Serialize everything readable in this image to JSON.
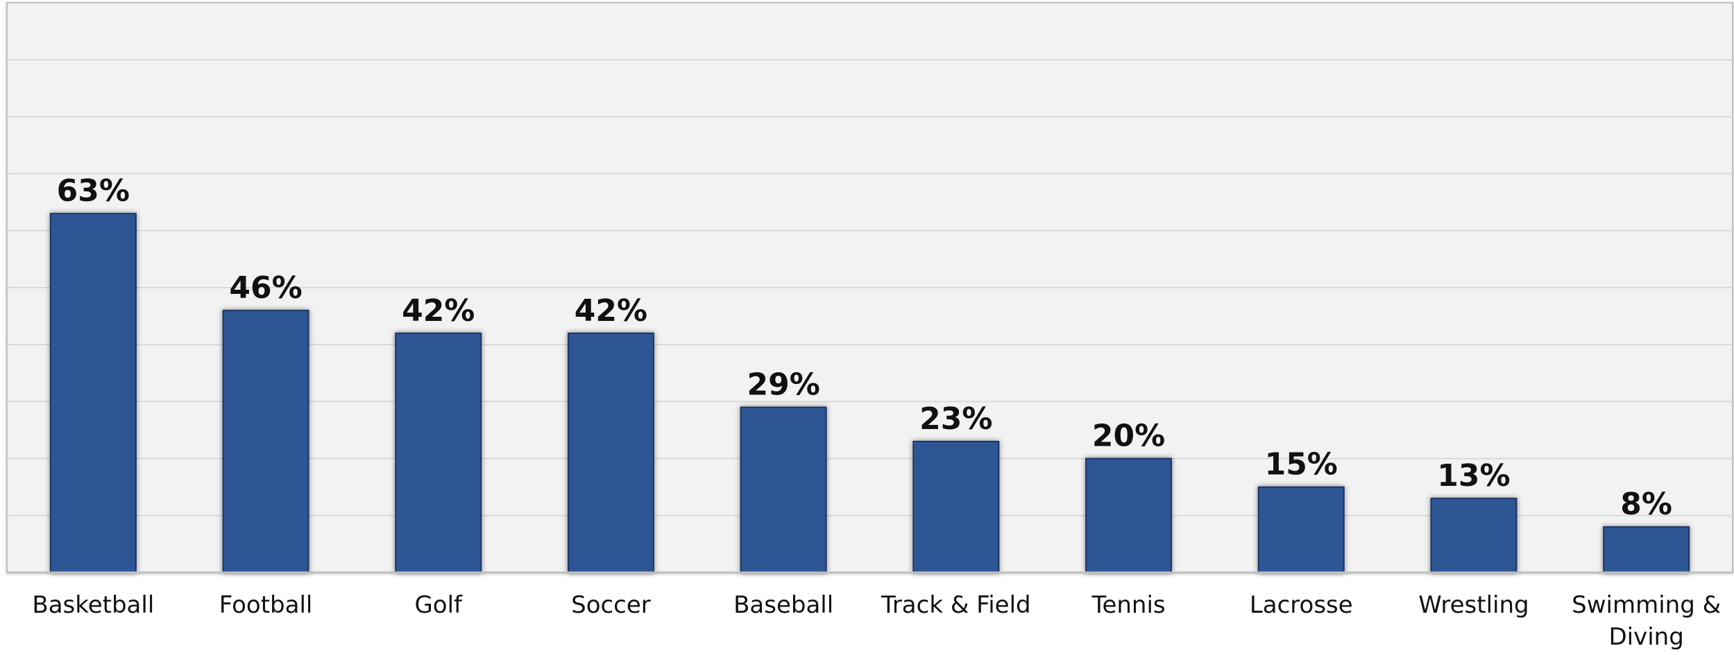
{
  "chart_data": {
    "type": "bar",
    "title": "",
    "xlabel": "",
    "ylabel": "",
    "categories": [
      "Basketball",
      "Football",
      "Golf",
      "Soccer",
      "Baseball",
      "Track & Field",
      "Tennis",
      "Lacrosse",
      "Wrestling",
      "Swimming & Diving"
    ],
    "values": [
      63,
      46,
      42,
      42,
      29,
      23,
      20,
      15,
      13,
      8
    ],
    "data_labels": [
      "63%",
      "46%",
      "42%",
      "42%",
      "29%",
      "23%",
      "20%",
      "15%",
      "13%",
      "8%"
    ],
    "ylim": [
      0,
      100
    ],
    "y_unit": "%",
    "grid": true,
    "legend": "none",
    "colors": {
      "bar": "#2E5594",
      "bar_edge": "#1C3564",
      "plot_background": "#F2F2F2",
      "gridline": "#D9D9D9",
      "axis": "#BFBFBF",
      "text": "#111111"
    }
  }
}
